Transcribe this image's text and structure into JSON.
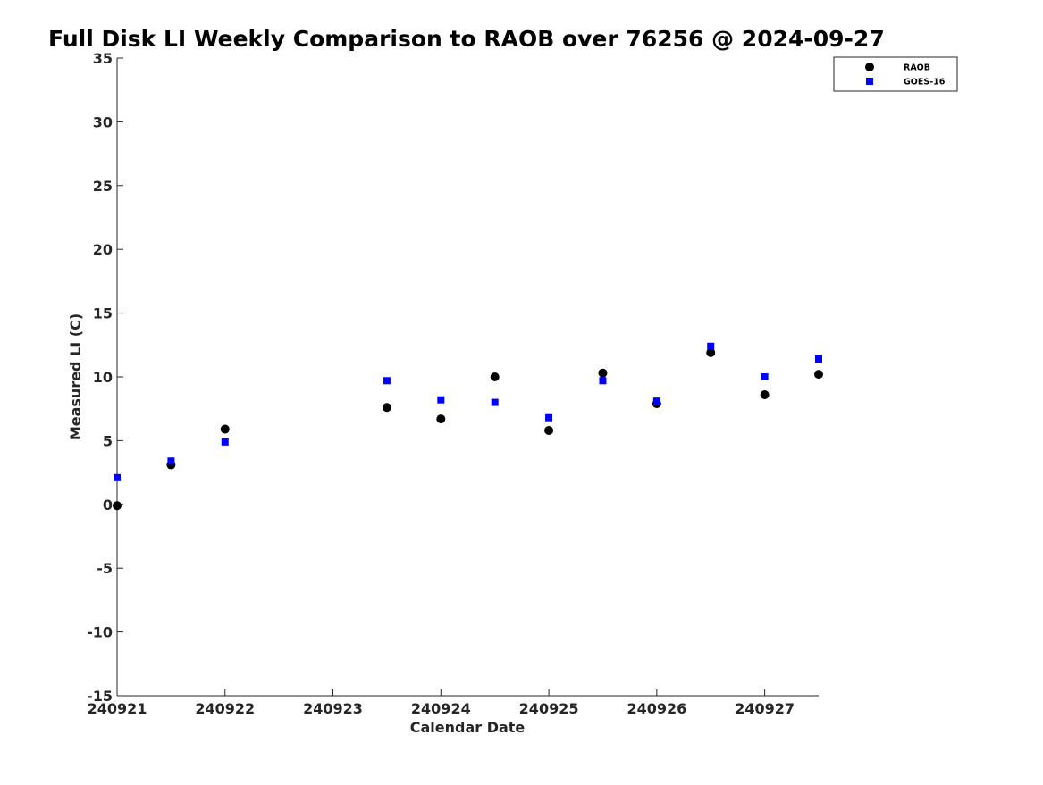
{
  "chart_data": {
    "type": "scatter",
    "title": "Full Disk LI Weekly Comparison to RAOB over 76256 @ 2024-09-27",
    "xlabel": "Calendar Date",
    "ylabel": "Measured LI (C)",
    "x_ticks": [
      "240921",
      "240922",
      "240923",
      "240924",
      "240925",
      "240926",
      "240927"
    ],
    "xlim": [
      "2024-09-21 00:00",
      "2024-09-27 12:00"
    ],
    "ylim": [
      -15,
      35
    ],
    "y_ticks": [
      35,
      30,
      25,
      20,
      15,
      10,
      5,
      0,
      -5,
      -10,
      -15
    ],
    "grid": false,
    "legend_position": "top-right",
    "series": [
      {
        "name": "RAOB",
        "marker": "circle",
        "color": "#000000",
        "points": [
          {
            "x": "2024-09-21 00:00",
            "y": -0.1
          },
          {
            "x": "2024-09-21 12:00",
            "y": 3.1
          },
          {
            "x": "2024-09-22 00:00",
            "y": 5.9
          },
          {
            "x": "2024-09-23 12:00",
            "y": 7.6
          },
          {
            "x": "2024-09-24 00:00",
            "y": 6.7
          },
          {
            "x": "2024-09-24 12:00",
            "y": 10.0
          },
          {
            "x": "2024-09-25 00:00",
            "y": 5.8
          },
          {
            "x": "2024-09-25 12:00",
            "y": 10.3
          },
          {
            "x": "2024-09-26 00:00",
            "y": 7.9
          },
          {
            "x": "2024-09-26 12:00",
            "y": 11.9
          },
          {
            "x": "2024-09-27 00:00",
            "y": 8.6
          },
          {
            "x": "2024-09-27 12:00",
            "y": 10.2
          }
        ]
      },
      {
        "name": "GOES-16",
        "marker": "square",
        "color": "#0000ff",
        "points": [
          {
            "x": "2024-09-21 00:00",
            "y": 2.1
          },
          {
            "x": "2024-09-21 12:00",
            "y": 3.4
          },
          {
            "x": "2024-09-22 00:00",
            "y": 4.9
          },
          {
            "x": "2024-09-23 12:00",
            "y": 9.7
          },
          {
            "x": "2024-09-24 00:00",
            "y": 8.2
          },
          {
            "x": "2024-09-24 12:00",
            "y": 8.0
          },
          {
            "x": "2024-09-25 00:00",
            "y": 6.8
          },
          {
            "x": "2024-09-25 12:00",
            "y": 9.7
          },
          {
            "x": "2024-09-26 00:00",
            "y": 8.1
          },
          {
            "x": "2024-09-26 12:00",
            "y": 12.4
          },
          {
            "x": "2024-09-27 00:00",
            "y": 10.0
          },
          {
            "x": "2024-09-27 12:00",
            "y": 11.4
          }
        ]
      }
    ]
  }
}
